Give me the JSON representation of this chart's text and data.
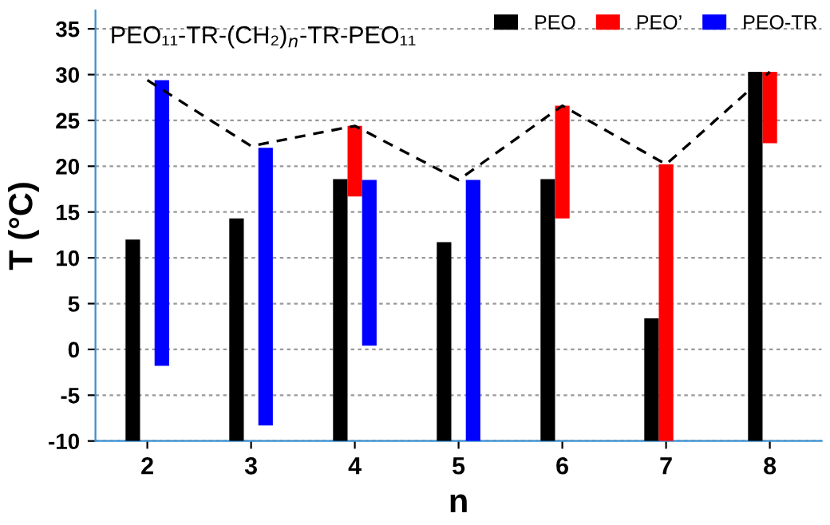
{
  "chart_data": {
    "type": "bar",
    "xlabel": "n",
    "ylabel": "T (°C)",
    "annotations": [
      "PEO₁₁-TR-(CH₂)$_{n}$-TR-PEO₁₁"
    ],
    "categories": [
      "2",
      "3",
      "4",
      "5",
      "6",
      "7",
      "8"
    ],
    "series": [
      {
        "name": "PEO",
        "color": "#000000",
        "base": [
          -10,
          -10,
          -10,
          -10,
          -10,
          -10,
          -10
        ],
        "values": [
          22.0,
          24.3,
          28.6,
          21.7,
          28.6,
          13.4,
          40.3
        ]
      },
      {
        "name": "PEO’",
        "color": "#ff0000",
        "base": [
          null,
          null,
          16.7,
          null,
          14.3,
          -10,
          22.5
        ],
        "values": [
          null,
          null,
          7.7,
          null,
          12.3,
          30.2,
          7.8
        ]
      },
      {
        "name": "PEO-TR",
        "color": "#0000ff",
        "base": [
          -1.8,
          -8.3,
          0.4,
          -10,
          null,
          null,
          null
        ],
        "values": [
          31.2,
          30.3,
          18.1,
          28.5,
          null,
          null,
          null
        ]
      },
      {
        "type": "line",
        "color": "#000000",
        "line_style": "dashed",
        "marker": "none",
        "values": [
          29.4,
          22.2,
          24.4,
          18.5,
          26.6,
          20.2,
          30.3
        ]
      }
    ],
    "ylim": [
      -10,
      37
    ],
    "yticks": [
      -10,
      -5,
      0,
      5,
      10,
      15,
      20,
      25,
      30,
      35
    ],
    "grid": "y",
    "legend": "top right"
  }
}
